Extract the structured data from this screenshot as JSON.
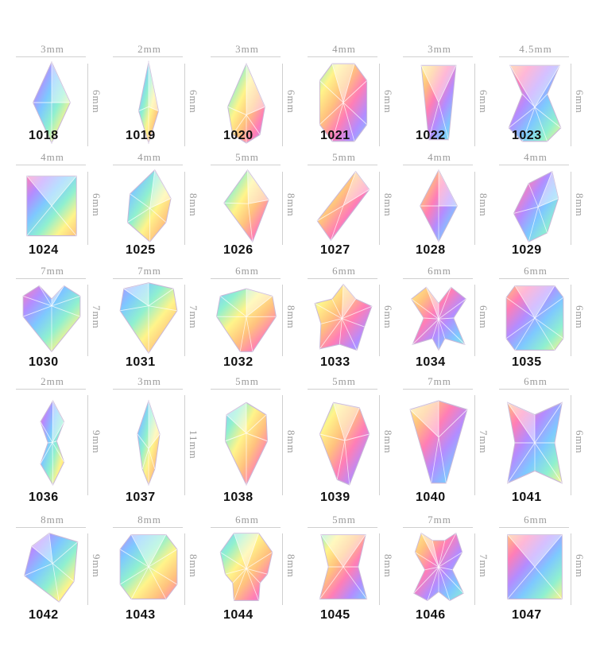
{
  "items": [
    {
      "code": "1018",
      "width": "3mm",
      "height": "6mm",
      "shape": "marquise"
    },
    {
      "code": "1019",
      "width": "2mm",
      "height": "6mm",
      "shape": "teardrop-slim"
    },
    {
      "code": "1020",
      "width": "3mm",
      "height": "6mm",
      "shape": "teardrop"
    },
    {
      "code": "1021",
      "width": "4mm",
      "height": "6mm",
      "shape": "octagon"
    },
    {
      "code": "1022",
      "width": "3mm",
      "height": "6mm",
      "shape": "trapezoid"
    },
    {
      "code": "1023",
      "width": "4.5mm",
      "height": "6mm",
      "shape": "hourglass"
    },
    {
      "code": "1024",
      "width": "4mm",
      "height": "6mm",
      "shape": "rectangle"
    },
    {
      "code": "1025",
      "width": "4mm",
      "height": "8mm",
      "shape": "shield"
    },
    {
      "code": "1026",
      "width": "5mm",
      "height": "8mm",
      "shape": "kite"
    },
    {
      "code": "1027",
      "width": "5mm",
      "height": "8mm",
      "shape": "rhombus"
    },
    {
      "code": "1028",
      "width": "4mm",
      "height": "8mm",
      "shape": "marquise"
    },
    {
      "code": "1029",
      "width": "4mm",
      "height": "8mm",
      "shape": "leaf"
    },
    {
      "code": "1030",
      "width": "7mm",
      "height": "7mm",
      "shape": "heart"
    },
    {
      "code": "1031",
      "width": "7mm",
      "height": "7mm",
      "shape": "trillion"
    },
    {
      "code": "1032",
      "width": "6mm",
      "height": "8mm",
      "shape": "fan"
    },
    {
      "code": "1033",
      "width": "6mm",
      "height": "6mm",
      "shape": "flower"
    },
    {
      "code": "1034",
      "width": "6mm",
      "height": "6mm",
      "shape": "butterfly"
    },
    {
      "code": "1035",
      "width": "6mm",
      "height": "6mm",
      "shape": "cushion"
    },
    {
      "code": "1036",
      "width": "2mm",
      "height": "9mm",
      "shape": "wave"
    },
    {
      "code": "1037",
      "width": "3mm",
      "height": "11mm",
      "shape": "spike"
    },
    {
      "code": "1038",
      "width": "5mm",
      "height": "8mm",
      "shape": "drop-down"
    },
    {
      "code": "1039",
      "width": "5mm",
      "height": "8mm",
      "shape": "shield-down"
    },
    {
      "code": "1040",
      "width": "7mm",
      "height": "7mm",
      "shape": "triangle-down"
    },
    {
      "code": "1041",
      "width": "6mm",
      "height": "6mm",
      "shape": "star4"
    },
    {
      "code": "1042",
      "width": "8mm",
      "height": "9mm",
      "shape": "triangle-heart"
    },
    {
      "code": "1043",
      "width": "8mm",
      "height": "8mm",
      "shape": "octagon-wide"
    },
    {
      "code": "1044",
      "width": "6mm",
      "height": "8mm",
      "shape": "skull"
    },
    {
      "code": "1045",
      "width": "5mm",
      "height": "8mm",
      "shape": "bowtie"
    },
    {
      "code": "1046",
      "width": "7mm",
      "height": "7mm",
      "shape": "bear"
    },
    {
      "code": "1047",
      "width": "6mm",
      "height": "6mm",
      "shape": "square"
    }
  ],
  "colors": {
    "label": "#9a9a9a",
    "line": "#d0d0d0",
    "code": "#111111",
    "iridescent": [
      "#ff7eb6",
      "#b48cff",
      "#7ec8ff",
      "#8ff0d0",
      "#fff48a",
      "#ffc27e"
    ]
  }
}
